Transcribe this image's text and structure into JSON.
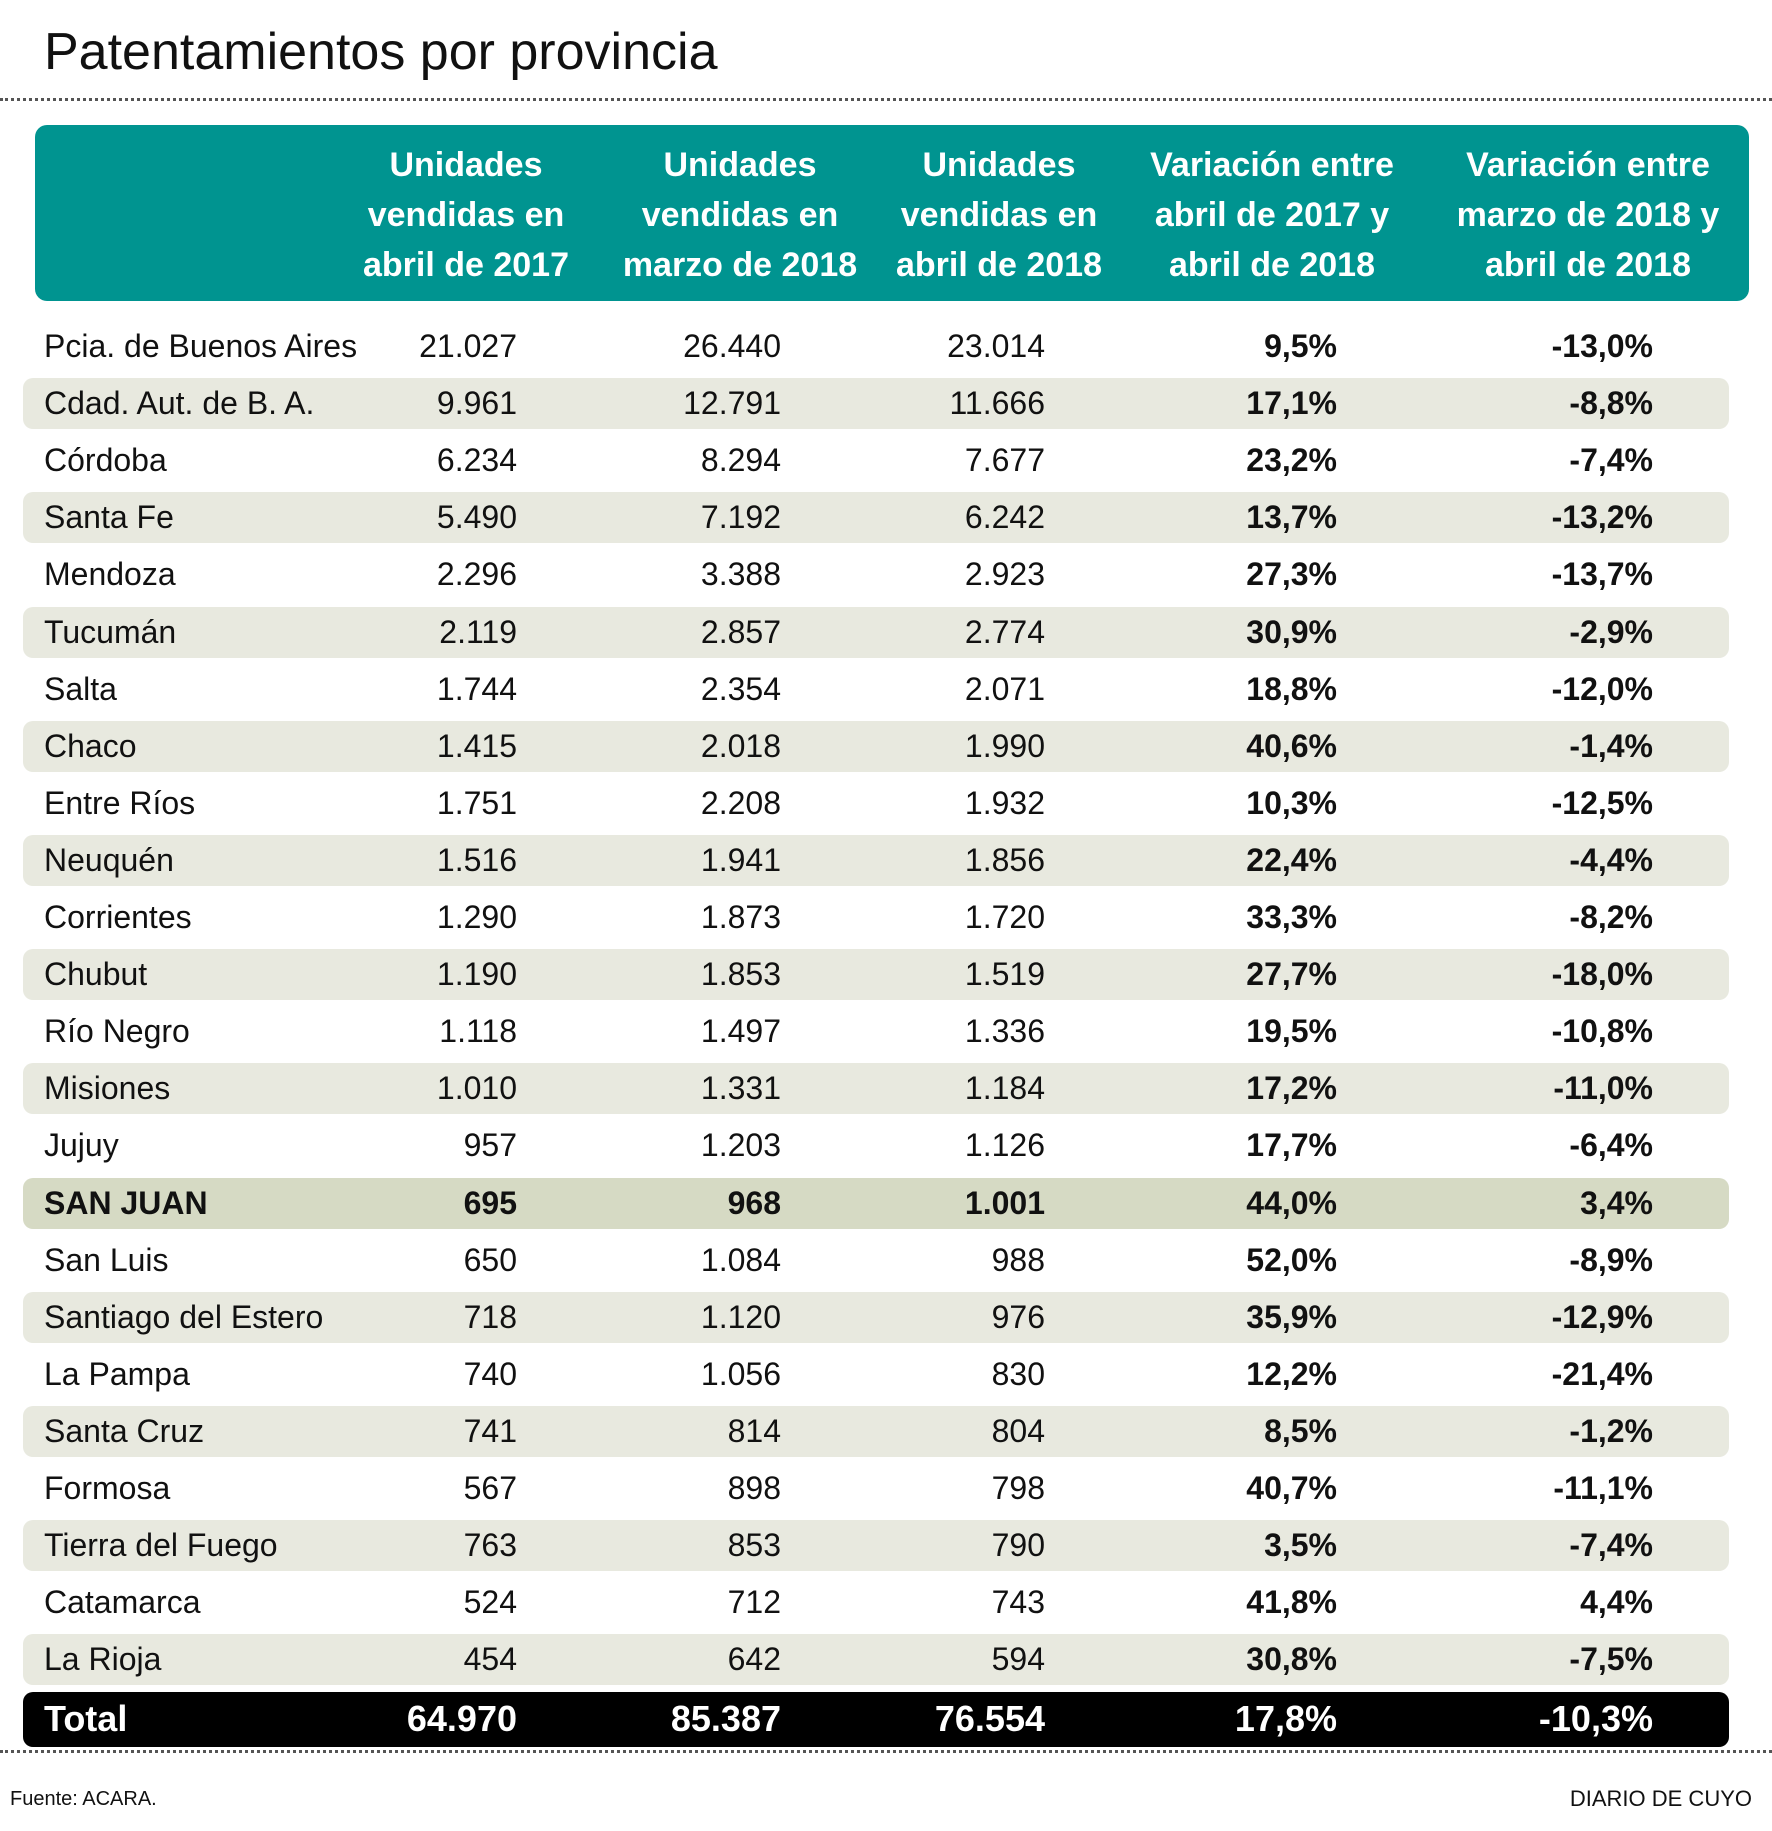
{
  "header": {
    "title": "Patentamientos por provincia"
  },
  "table": {
    "columns": [
      [
        "Unidades",
        "vendidas en",
        "abril de 2017"
      ],
      [
        "Unidades",
        "vendidas en",
        "marzo de 2018"
      ],
      [
        "Unidades",
        "vendidas en",
        "abril de 2018"
      ],
      [
        "Variación entre",
        "abril de 2017 y",
        "abril de 2018"
      ],
      [
        "Variación entre",
        "marzo de 2018 y",
        "abril de 2018"
      ]
    ],
    "rows": [
      [
        "Pcia. de Buenos Aires",
        "21.027",
        "26.440",
        "23.014",
        "9,5%",
        "-13,0%"
      ],
      [
        "Cdad. Aut. de B. A.",
        "9.961",
        "12.791",
        "11.666",
        "17,1%",
        "-8,8%"
      ],
      [
        "Córdoba",
        "6.234",
        "8.294",
        "7.677",
        "23,2%",
        "-7,4%"
      ],
      [
        "Santa Fe",
        "5.490",
        "7.192",
        "6.242",
        "13,7%",
        "-13,2%"
      ],
      [
        "Mendoza",
        "2.296",
        "3.388",
        "2.923",
        "27,3%",
        "-13,7%"
      ],
      [
        "Tucumán",
        "2.119",
        "2.857",
        "2.774",
        "30,9%",
        "-2,9%"
      ],
      [
        "Salta",
        "1.744",
        "2.354",
        "2.071",
        "18,8%",
        "-12,0%"
      ],
      [
        "Chaco",
        "1.415",
        "2.018",
        "1.990",
        "40,6%",
        "-1,4%"
      ],
      [
        "Entre Ríos",
        "1.751",
        "2.208",
        "1.932",
        "10,3%",
        "-12,5%"
      ],
      [
        "Neuquén",
        "1.516",
        "1.941",
        "1.856",
        "22,4%",
        "-4,4%"
      ],
      [
        "Corrientes",
        "1.290",
        "1.873",
        "1.720",
        "33,3%",
        "-8,2%"
      ],
      [
        "Chubut",
        "1.190",
        "1.853",
        "1.519",
        "27,7%",
        "-18,0%"
      ],
      [
        "Río Negro",
        "1.118",
        "1.497",
        "1.336",
        "19,5%",
        "-10,8%"
      ],
      [
        "Misiones",
        "1.010",
        "1.331",
        "1.184",
        "17,2%",
        "-11,0%"
      ],
      [
        "Jujuy",
        "957",
        "1.203",
        "1.126",
        "17,7%",
        "-6,4%"
      ],
      [
        "SAN JUAN",
        "695",
        "968",
        "1.001",
        "44,0%",
        "3,4%"
      ],
      [
        "San Luis",
        "650",
        "1.084",
        "988",
        "52,0%",
        "-8,9%"
      ],
      [
        "Santiago del Estero",
        "718",
        "1.120",
        "976",
        "35,9%",
        "-12,9%"
      ],
      [
        "La Pampa",
        "740",
        "1.056",
        "830",
        "12,2%",
        "-21,4%"
      ],
      [
        "Santa Cruz",
        "741",
        "814",
        "804",
        "8,5%",
        "-1,2%"
      ],
      [
        "Formosa",
        "567",
        "898",
        "798",
        "40,7%",
        "-11,1%"
      ],
      [
        "Tierra del Fuego",
        "763",
        "853",
        "790",
        "3,5%",
        "-7,4%"
      ],
      [
        "Catamarca",
        "524",
        "712",
        "743",
        "41,8%",
        "4,4%"
      ],
      [
        "La Rioja",
        "454",
        "642",
        "594",
        "30,8%",
        "-7,5%"
      ]
    ],
    "total": [
      "Total",
      "64.970",
      "85.387",
      "76.554",
      "17,8%",
      "-10,3%"
    ]
  },
  "footer": {
    "source": "Fuente: ACARA.",
    "brand": "DIARIO DE CUYO"
  }
}
